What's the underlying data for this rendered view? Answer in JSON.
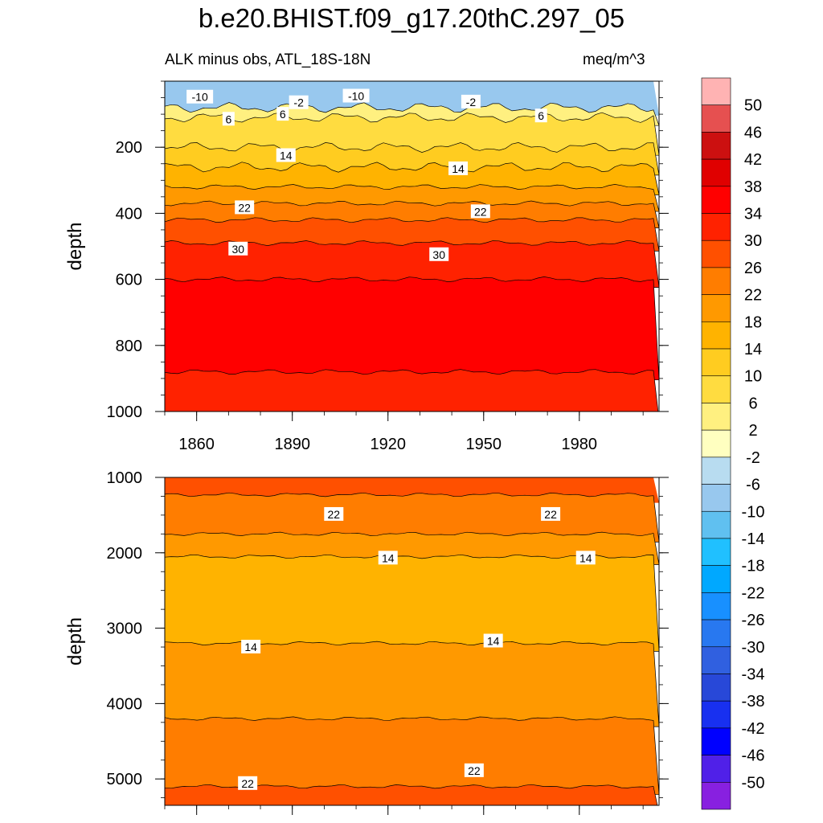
{
  "title": "b.e20.BHIST.f09_g17.20thC.297_05",
  "colorbar": {
    "labels": [
      "50",
      "46",
      "42",
      "38",
      "34",
      "30",
      "26",
      "22",
      "18",
      "14",
      "10",
      "6",
      "2",
      "-2",
      "-6",
      "-10",
      "-14",
      "-18",
      "-22",
      "-26",
      "-30",
      "-34",
      "-38",
      "-42",
      "-46",
      "-50"
    ],
    "colors": [
      "#ffb3b3",
      "#e65050",
      "#cc1010",
      "#e00000",
      "#ff0000",
      "#ff2200",
      "#ff5000",
      "#ff7d00",
      "#ff9900",
      "#ffb300",
      "#ffcc20",
      "#ffdc40",
      "#fff080",
      "#ffffc0",
      "#b8dcf0",
      "#98c8ee",
      "#60c0f0",
      "#20c0ff",
      "#00a8ff",
      "#1890ff",
      "#2878f0",
      "#3060e0",
      "#2848d8",
      "#1830f0",
      "#0000ff",
      "#5020e8",
      "#8820e0"
    ]
  },
  "chart_data": [
    {
      "type": "heatmap",
      "subtitle_left": "ALK minus obs, ATL_18S-18N",
      "subtitle_right": "meq/m^3",
      "ylabel": "depth",
      "xlabel": "",
      "xlim": [
        1850,
        2005
      ],
      "ylim": [
        0,
        1000
      ],
      "y_inverted": true,
      "xticks": [
        "1860",
        "1890",
        "1920",
        "1950",
        "1980"
      ],
      "yticks": [
        "200",
        "400",
        "600",
        "800",
        "1000"
      ],
      "bands": [
        {
          "from": 0,
          "to": 80,
          "value": -10
        },
        {
          "from": 80,
          "to": 110,
          "value": 2
        },
        {
          "from": 110,
          "to": 200,
          "value": 6
        },
        {
          "from": 200,
          "to": 260,
          "value": 10
        },
        {
          "from": 260,
          "to": 320,
          "value": 14
        },
        {
          "from": 320,
          "to": 370,
          "value": 18
        },
        {
          "from": 370,
          "to": 420,
          "value": 22
        },
        {
          "from": 420,
          "to": 490,
          "value": 26
        },
        {
          "from": 490,
          "to": 600,
          "value": 30
        },
        {
          "from": 600,
          "to": 880,
          "value": 34
        },
        {
          "from": 880,
          "to": 1000,
          "value": 30
        }
      ],
      "contour_labels": [
        {
          "text": "-10",
          "x": 1861,
          "y": 48
        },
        {
          "text": "-2",
          "x": 1892,
          "y": 65
        },
        {
          "text": "-10",
          "x": 1910,
          "y": 45
        },
        {
          "text": "-2",
          "x": 1946,
          "y": 63
        },
        {
          "text": "6",
          "x": 1870,
          "y": 115
        },
        {
          "text": "6",
          "x": 1887,
          "y": 100
        },
        {
          "text": "6",
          "x": 1968,
          "y": 105
        },
        {
          "text": "14",
          "x": 1888,
          "y": 225
        },
        {
          "text": "14",
          "x": 1942,
          "y": 265
        },
        {
          "text": "22",
          "x": 1875,
          "y": 383
        },
        {
          "text": "22",
          "x": 1949,
          "y": 395
        },
        {
          "text": "30",
          "x": 1873,
          "y": 508
        },
        {
          "text": "30",
          "x": 1936,
          "y": 525
        }
      ]
    },
    {
      "type": "heatmap",
      "ylabel": "depth",
      "xlabel": "",
      "xlim": [
        1850,
        2005
      ],
      "ylim": [
        1000,
        5350
      ],
      "y_inverted": true,
      "xticks": [
        "1860",
        "1890",
        "1920",
        "1950",
        "1980"
      ],
      "yticks": [
        "1000",
        "2000",
        "3000",
        "4000",
        "5000"
      ],
      "bands": [
        {
          "from": 1000,
          "to": 1230,
          "value": 26
        },
        {
          "from": 1230,
          "to": 1750,
          "value": 22
        },
        {
          "from": 1750,
          "to": 2050,
          "value": 18
        },
        {
          "from": 2050,
          "to": 3200,
          "value": 14
        },
        {
          "from": 3200,
          "to": 4200,
          "value": 18
        },
        {
          "from": 4200,
          "to": 5100,
          "value": 22
        },
        {
          "from": 5100,
          "to": 5350,
          "value": 26
        }
      ],
      "contour_labels": [
        {
          "text": "22",
          "x": 1903,
          "y": 1490
        },
        {
          "text": "22",
          "x": 1971,
          "y": 1490
        },
        {
          "text": "14",
          "x": 1920,
          "y": 2070
        },
        {
          "text": "14",
          "x": 1982,
          "y": 2070
        },
        {
          "text": "14",
          "x": 1877,
          "y": 3250
        },
        {
          "text": "14",
          "x": 1953,
          "y": 3170
        },
        {
          "text": "22",
          "x": 1876,
          "y": 5060
        },
        {
          "text": "22",
          "x": 1947,
          "y": 4890
        }
      ]
    }
  ]
}
